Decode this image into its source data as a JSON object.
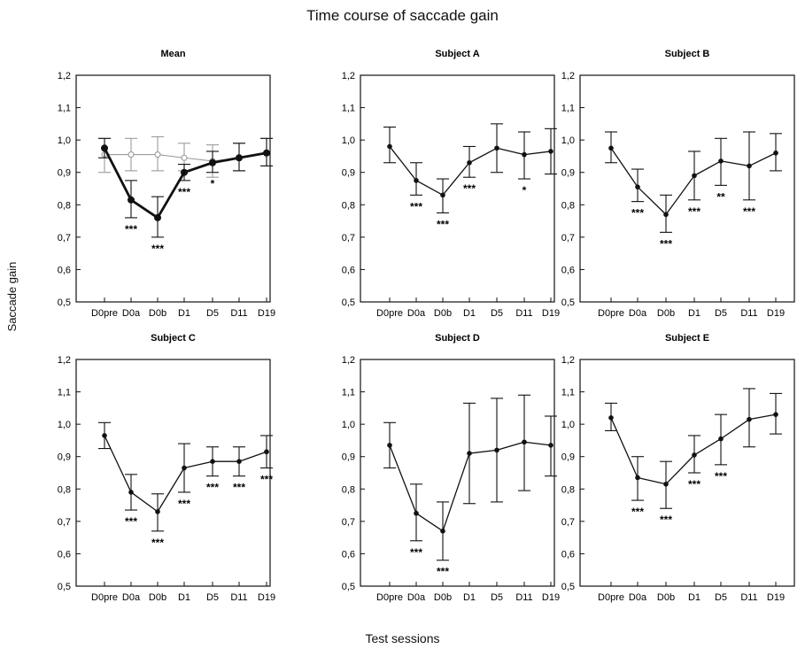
{
  "figure": {
    "title": "Time course of saccade gain",
    "ylabel": "Saccade gain",
    "xlabel": "Test sessions"
  },
  "chart_data": [
    {
      "type": "line",
      "title": "Mean",
      "categories": [
        "D0pre",
        "D0a",
        "D0b",
        "D1",
        "D5",
        "D11",
        "D19"
      ],
      "ylim": [
        0.5,
        1.2
      ],
      "yticks": [
        "0,5",
        "0,6",
        "0,7",
        "0,8",
        "0,9",
        "1,0",
        "1,1",
        "1,2"
      ],
      "series": [
        {
          "style": "bold",
          "values": [
            0.975,
            0.815,
            0.76,
            0.9,
            0.93,
            0.945,
            0.96
          ],
          "err_low": [
            0.945,
            0.76,
            0.7,
            0.875,
            0.9,
            0.905,
            0.92
          ],
          "err_high": [
            1.005,
            0.875,
            0.825,
            0.925,
            0.965,
            0.99,
            1.005
          ]
        },
        {
          "style": "gray",
          "values": [
            0.955,
            0.955,
            0.955,
            0.945,
            0.935,
            0.945,
            0.96
          ],
          "err_low": [
            0.9,
            0.905,
            0.905,
            0.905,
            0.885,
            0.905,
            0.92
          ],
          "err_high": [
            1.005,
            1.005,
            1.01,
            0.99,
            0.985,
            0.99,
            1.005
          ]
        }
      ],
      "annotations": [
        "",
        "***",
        "***",
        "***",
        "*",
        "",
        ""
      ]
    },
    {
      "type": "line",
      "title": "Subject A",
      "categories": [
        "D0pre",
        "D0a",
        "D0b",
        "D1",
        "D5",
        "D11",
        "D19"
      ],
      "ylim": [
        0.5,
        1.2
      ],
      "yticks": [
        "0,5",
        "0,6",
        "0,7",
        "0,8",
        "0,9",
        "1,0",
        "1,1",
        "1,2"
      ],
      "series": [
        {
          "style": "normal",
          "values": [
            0.98,
            0.875,
            0.83,
            0.93,
            0.975,
            0.955,
            0.965
          ],
          "err_low": [
            0.93,
            0.83,
            0.775,
            0.885,
            0.9,
            0.88,
            0.895
          ],
          "err_high": [
            1.04,
            0.93,
            0.88,
            0.98,
            1.05,
            1.025,
            1.035
          ]
        }
      ],
      "annotations": [
        "",
        "***",
        "***",
        "***",
        "",
        "*",
        ""
      ]
    },
    {
      "type": "line",
      "title": "Subject B",
      "categories": [
        "D0pre",
        "D0a",
        "D0b",
        "D1",
        "D5",
        "D11",
        "D19"
      ],
      "ylim": [
        0.5,
        1.2
      ],
      "yticks": [
        "0,5",
        "0,6",
        "0,7",
        "0,8",
        "0,9",
        "1,0",
        "1,1",
        "1,2"
      ],
      "series": [
        {
          "style": "normal",
          "values": [
            0.975,
            0.855,
            0.77,
            0.89,
            0.935,
            0.92,
            0.96
          ],
          "err_low": [
            0.93,
            0.81,
            0.715,
            0.815,
            0.86,
            0.815,
            0.905
          ],
          "err_high": [
            1.025,
            0.91,
            0.83,
            0.965,
            1.005,
            1.025,
            1.02
          ]
        }
      ],
      "annotations": [
        "",
        "***",
        "***",
        "***",
        "**",
        "***",
        ""
      ]
    },
    {
      "type": "line",
      "title": "Subject C",
      "categories": [
        "D0pre",
        "D0a",
        "D0b",
        "D1",
        "D5",
        "D11",
        "D19"
      ],
      "ylim": [
        0.5,
        1.2
      ],
      "yticks": [
        "0,5",
        "0,6",
        "0,7",
        "0,8",
        "0,9",
        "1,0",
        "1,1",
        "1,2"
      ],
      "series": [
        {
          "style": "normal",
          "values": [
            0.965,
            0.79,
            0.73,
            0.865,
            0.885,
            0.885,
            0.915
          ],
          "err_low": [
            0.925,
            0.735,
            0.67,
            0.79,
            0.84,
            0.84,
            0.865
          ],
          "err_high": [
            1.005,
            0.845,
            0.785,
            0.94,
            0.93,
            0.93,
            0.965
          ]
        }
      ],
      "annotations": [
        "",
        "***",
        "***",
        "***",
        "***",
        "***",
        "***"
      ]
    },
    {
      "type": "line",
      "title": "Subject D",
      "categories": [
        "D0pre",
        "D0a",
        "D0b",
        "D1",
        "D5",
        "D11",
        "D19"
      ],
      "ylim": [
        0.5,
        1.2
      ],
      "yticks": [
        "0,5",
        "0,6",
        "0,7",
        "0,8",
        "0,9",
        "1,0",
        "1,1",
        "1,2"
      ],
      "series": [
        {
          "style": "normal",
          "values": [
            0.935,
            0.725,
            0.67,
            0.91,
            0.92,
            0.945,
            0.935
          ],
          "err_low": [
            0.865,
            0.64,
            0.58,
            0.755,
            0.76,
            0.795,
            0.84
          ],
          "err_high": [
            1.005,
            0.815,
            0.76,
            1.065,
            1.08,
            1.09,
            1.025
          ]
        }
      ],
      "annotations": [
        "",
        "***",
        "***",
        "",
        "",
        "",
        ""
      ]
    },
    {
      "type": "line",
      "title": "Subject E",
      "categories": [
        "D0pre",
        "D0a",
        "D0b",
        "D1",
        "D5",
        "D11",
        "D19"
      ],
      "ylim": [
        0.5,
        1.2
      ],
      "yticks": [
        "0,5",
        "0,6",
        "0,7",
        "0,8",
        "0,9",
        "1,0",
        "1,1",
        "1,2"
      ],
      "series": [
        {
          "style": "normal",
          "values": [
            1.02,
            0.835,
            0.815,
            0.905,
            0.955,
            1.015,
            1.03
          ],
          "err_low": [
            0.98,
            0.765,
            0.74,
            0.85,
            0.875,
            0.93,
            0.97
          ],
          "err_high": [
            1.065,
            0.9,
            0.885,
            0.965,
            1.03,
            1.11,
            1.095
          ]
        }
      ],
      "annotations": [
        "",
        "***",
        "***",
        "***",
        "***",
        "",
        ""
      ]
    }
  ]
}
